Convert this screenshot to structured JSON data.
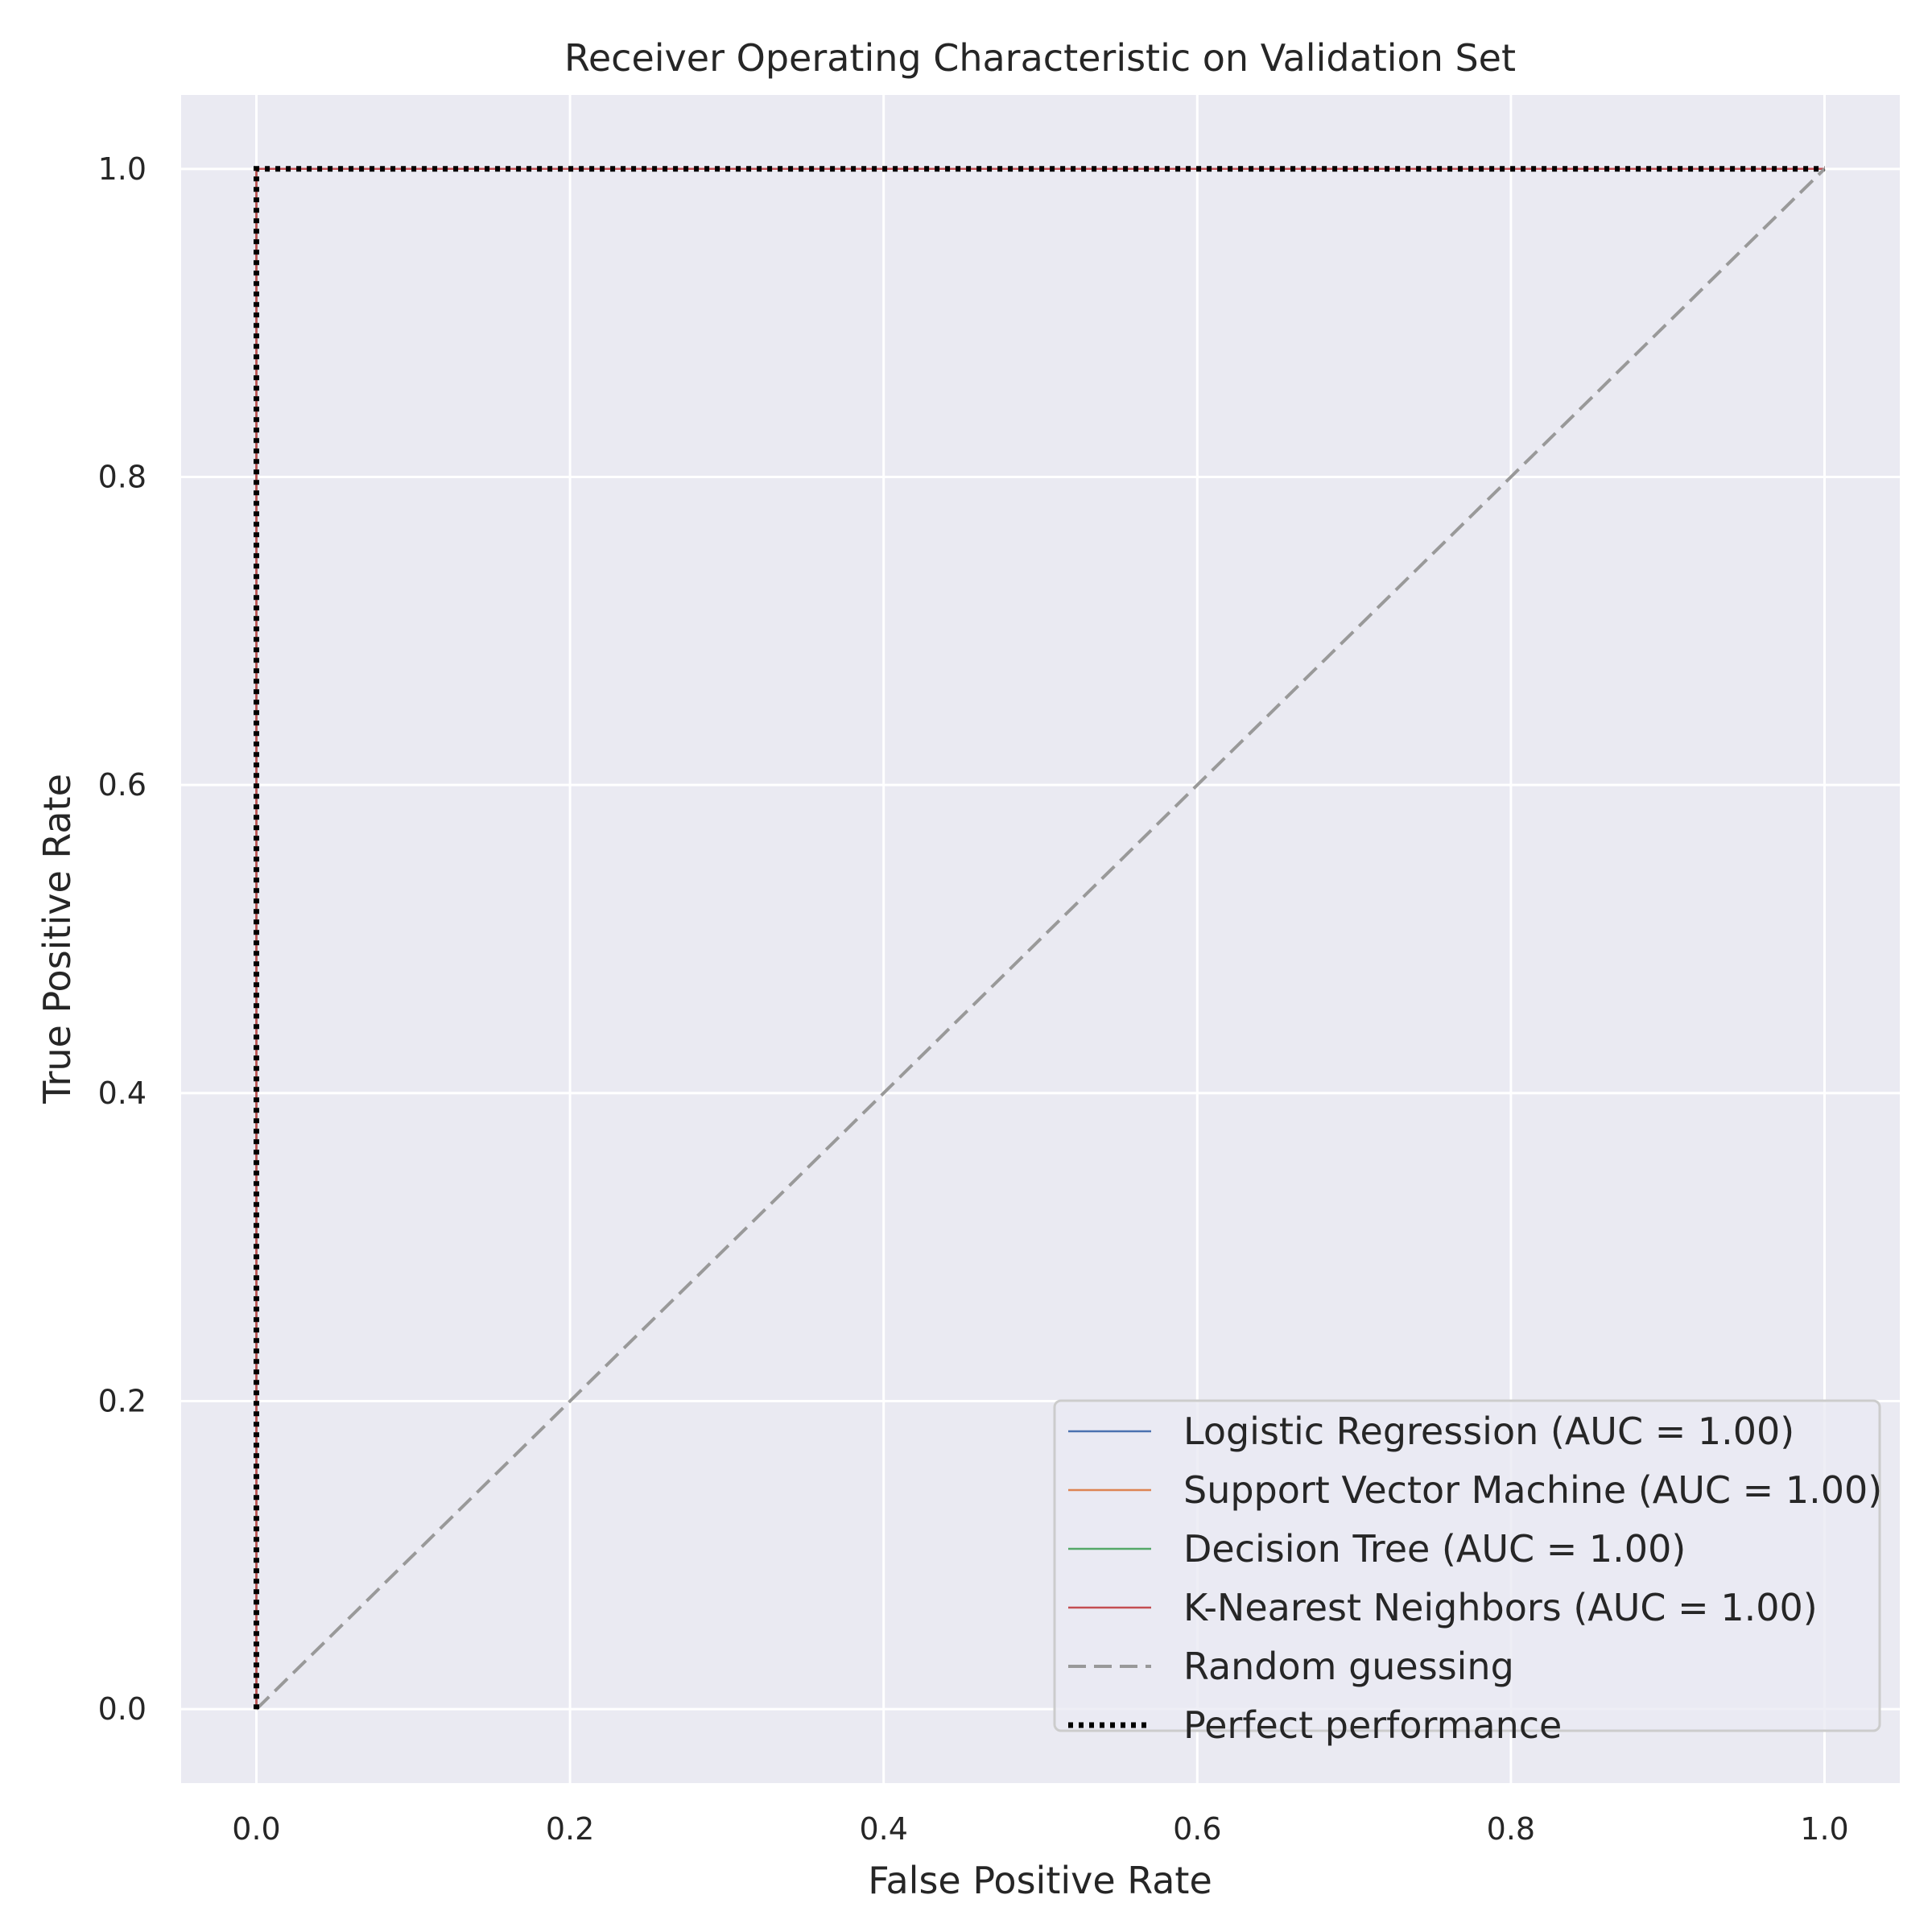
{
  "chart_data": {
    "type": "line",
    "title": "Receiver Operating Characteristic on Validation Set",
    "xlabel": "False Positive Rate",
    "ylabel": "True Positive Rate",
    "xlim": [
      -0.048,
      1.048
    ],
    "ylim": [
      -0.048,
      1.048
    ],
    "xticks": [
      0.0,
      0.2,
      0.4,
      0.6,
      0.8,
      1.0
    ],
    "yticks": [
      0.0,
      0.2,
      0.4,
      0.6,
      0.8,
      1.0
    ],
    "xtick_labels": [
      "0.0",
      "0.2",
      "0.4",
      "0.6",
      "0.8",
      "1.0"
    ],
    "ytick_labels": [
      "0.0",
      "0.2",
      "0.4",
      "0.6",
      "0.8",
      "1.0"
    ],
    "grid": true,
    "legend_position": "lower-right",
    "background": "#eaeaf2",
    "series": [
      {
        "name": "Logistic Regression (AUC = 1.00)",
        "color": "#4c72b0",
        "style": "solid",
        "x": [
          0,
          0,
          1
        ],
        "y": [
          0,
          1,
          1
        ]
      },
      {
        "name": "Support Vector Machine (AUC = 1.00)",
        "color": "#dd8452",
        "style": "solid",
        "x": [
          0,
          0,
          1
        ],
        "y": [
          0,
          1,
          1
        ]
      },
      {
        "name": "Decision Tree (AUC = 1.00)",
        "color": "#55a868",
        "style": "solid",
        "x": [
          0,
          0,
          1
        ],
        "y": [
          0,
          1,
          1
        ]
      },
      {
        "name": "K-Nearest Neighbors (AUC = 1.00)",
        "color": "#c44e52",
        "style": "solid",
        "x": [
          0,
          0,
          1
        ],
        "y": [
          0,
          1,
          1
        ]
      },
      {
        "name": "Random guessing",
        "color": "#999999",
        "style": "dashed",
        "x": [
          0,
          1
        ],
        "y": [
          0,
          1
        ]
      },
      {
        "name": "Perfect performance",
        "color": "#000000",
        "style": "dotted",
        "x": [
          0,
          0,
          1
        ],
        "y": [
          0,
          1,
          1
        ]
      }
    ]
  }
}
